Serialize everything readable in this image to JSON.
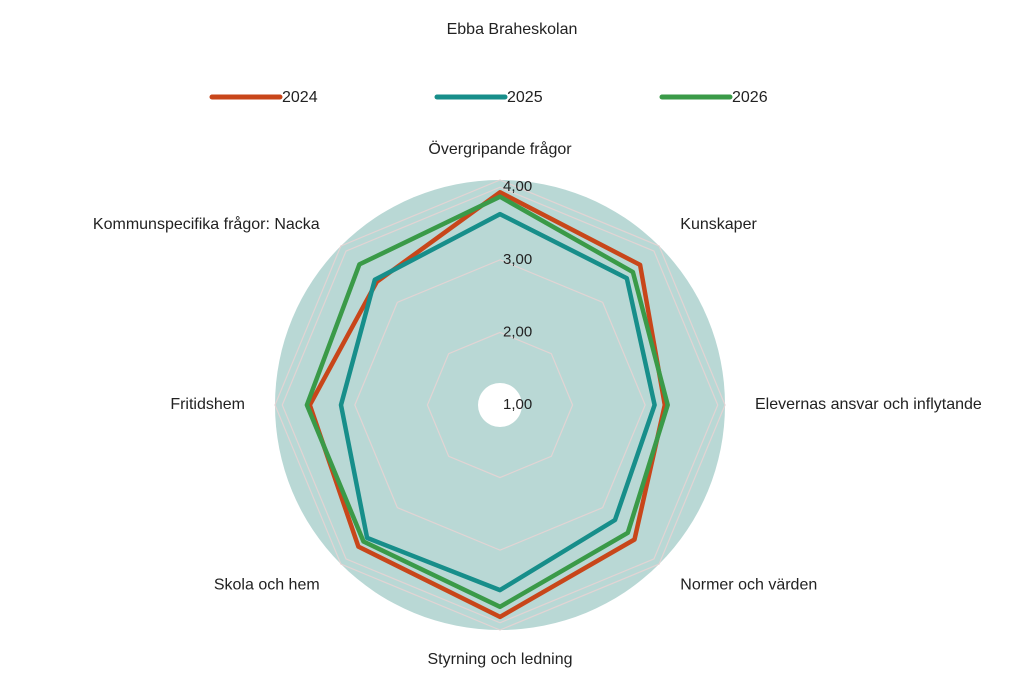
{
  "chart_data": {
    "type": "radar",
    "title": "Ebba Braheskolan",
    "categories": [
      "Övergripande frågor",
      "Kunskaper",
      "Elevernas ansvar och inflytande",
      "Normer och värden",
      "Styrning och ledning",
      "Skola och hem",
      "Fritidshem",
      "Kommunspecifika frågor: Nacka"
    ],
    "series": [
      {
        "name": "2024",
        "color": "#c8461a",
        "values": [
          3.93,
          3.73,
          3.27,
          3.62,
          3.92,
          3.76,
          3.62,
          3.4
        ]
      },
      {
        "name": "2025",
        "color": "#178e8a",
        "values": [
          3.63,
          3.47,
          3.13,
          3.24,
          3.55,
          3.59,
          3.19,
          3.44
        ]
      },
      {
        "name": "2026",
        "color": "#3a9a48",
        "values": [
          3.87,
          3.59,
          3.31,
          3.49,
          3.78,
          3.66,
          3.66,
          3.74
        ]
      }
    ],
    "ylim": [
      1,
      4.1
    ],
    "yticks": [
      {
        "value": 1,
        "label": "1,00"
      },
      {
        "value": 2,
        "label": "2,00"
      },
      {
        "value": 3,
        "label": "3,00"
      },
      {
        "value": 4,
        "label": "4,00"
      }
    ],
    "grid": true
  }
}
